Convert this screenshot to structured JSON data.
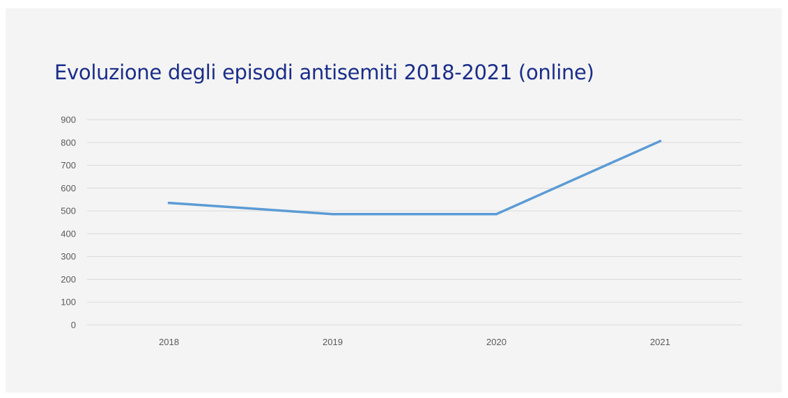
{
  "chart_data": {
    "type": "line",
    "title": "Evoluzione degli episodi antisemiti 2018-2021 (online)",
    "xlabel": "",
    "ylabel": "",
    "categories": [
      "2018",
      "2019",
      "2020",
      "2021"
    ],
    "series": [
      {
        "values": [
          535,
          486,
          486,
          806
        ]
      }
    ],
    "ylim": [
      0,
      900
    ],
    "yticks": [
      "0",
      "100",
      "200",
      "300",
      "400",
      "500",
      "600",
      "700",
      "800",
      "900"
    ],
    "grid": true,
    "legend": "none",
    "colors": {
      "line": "#5b9bd5",
      "grid": "#d9d9d9",
      "title": "#1a2d8a",
      "tick_text": "#595959",
      "panel_background": "#f4f4f4"
    }
  }
}
